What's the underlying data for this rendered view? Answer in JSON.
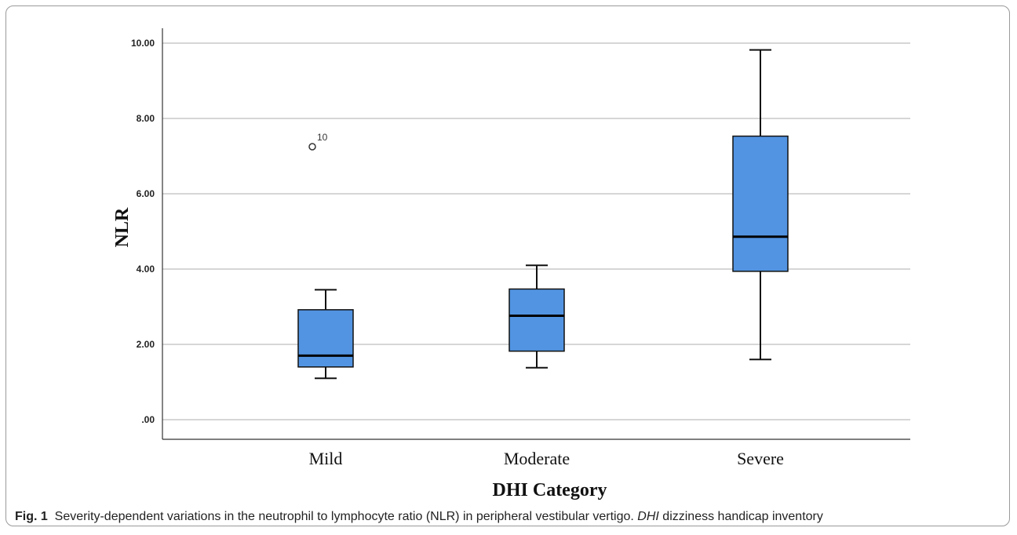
{
  "chart_data": {
    "type": "box",
    "xlabel": "DHI Category",
    "ylabel": "NLR",
    "ylim": [
      0,
      10
    ],
    "yticks": [
      0,
      2,
      4,
      6,
      8,
      10
    ],
    "ytick_labels": [
      ".00",
      "2.00",
      "4.00",
      "6.00",
      "8.00",
      "10.00"
    ],
    "grid": true,
    "box_color": "#5294e2",
    "categories": [
      "Mild",
      "Moderate",
      "Severe"
    ],
    "boxes": [
      {
        "category": "Mild",
        "min": 1.1,
        "q1": 1.4,
        "median": 1.7,
        "q3": 2.92,
        "max": 3.45,
        "outliers": [
          {
            "value": 7.25,
            "label": "10"
          }
        ]
      },
      {
        "category": "Moderate",
        "min": 1.38,
        "q1": 1.82,
        "median": 2.76,
        "q3": 3.47,
        "max": 4.1,
        "outliers": []
      },
      {
        "category": "Severe",
        "min": 1.6,
        "q1": 3.94,
        "median": 4.86,
        "q3": 7.53,
        "max": 9.82,
        "outliers": []
      }
    ]
  },
  "caption": {
    "label": "Fig. 1",
    "text": "Severity-dependent variations in the neutrophil to lymphocyte ratio (NLR) in peripheral vestibular vertigo.",
    "abbr": "DHI",
    "abbr_def": "dizziness handicap inventory"
  }
}
